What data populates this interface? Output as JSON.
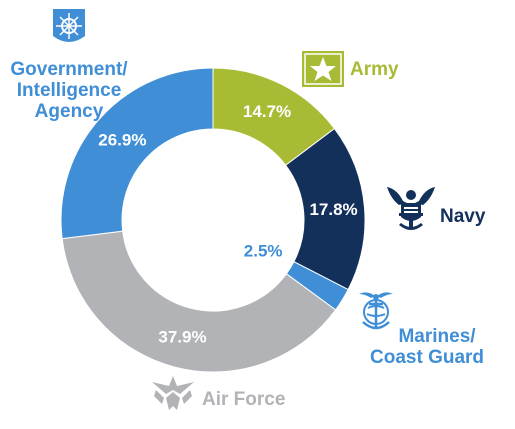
{
  "chart_data": {
    "type": "pie",
    "donut": true,
    "slices": [
      {
        "label": "Army",
        "value": 14.7,
        "text": "14.7%",
        "color": "#a9bb35",
        "label_color": "#a9bb35"
      },
      {
        "label": "Navy",
        "value": 17.8,
        "text": "17.8%",
        "color": "#13305b",
        "label_color": "#13305b"
      },
      {
        "label": "Marines/ Coast Guard",
        "value": 2.5,
        "text": "2.5%",
        "color": "#3f8ed6",
        "label_color": "#3f8ed6"
      },
      {
        "label": "Air Force",
        "value": 37.9,
        "text": "37.9%",
        "color": "#b1b3b6",
        "label_color": "#b1b3b6"
      },
      {
        "label": "Government/ Intelligence Agency",
        "value": 26.9,
        "text": "26.9%",
        "color": "#3f8ed6",
        "label_color": "#3f8ed6"
      }
    ],
    "icons": [
      "army-star-icon",
      "navy-eagle-icon",
      "marines-emblem-icon",
      "air-force-wings-icon",
      "agency-seal-icon"
    ]
  },
  "labels": {
    "army": "Army",
    "navy": "Navy",
    "marines_line1": "Marines/",
    "marines_line2": "Coast Guard",
    "air_force": "Air Force",
    "gov_line1": "Government/",
    "gov_line2": "Intelligence",
    "gov_line3": "Agency"
  }
}
